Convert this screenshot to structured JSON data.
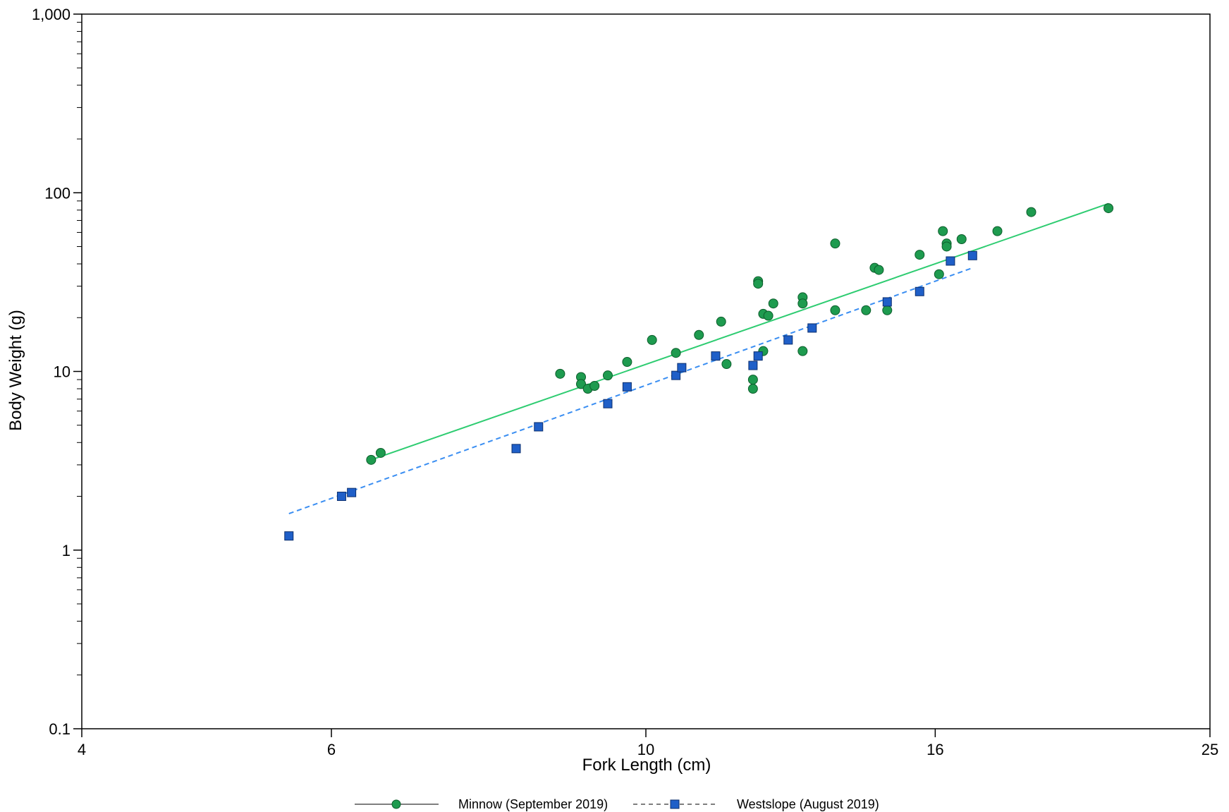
{
  "chart_data": {
    "type": "scatter",
    "title": "",
    "xlabel": "Fork Length (cm)",
    "ylabel": "Body Weight (g)",
    "x_scale": "log",
    "y_scale": "log",
    "xlim": [
      4,
      25
    ],
    "ylim": [
      0.1,
      1000
    ],
    "x_ticks": [
      4,
      6,
      10,
      16,
      25
    ],
    "x_tick_labels": [
      "4",
      "6",
      "10",
      "16",
      "25"
    ],
    "y_ticks": [
      0.1,
      1,
      10,
      100,
      1000
    ],
    "y_tick_labels": [
      "0.1",
      "1",
      "10",
      "100",
      "1,000"
    ],
    "grid": false,
    "legend_position": "bottom",
    "series": [
      {
        "name": "Minnow (September 2019)",
        "color": "#1e9b4f",
        "line_color": "#2ecc71",
        "marker": "circle",
        "line_style": "solid",
        "fit": {
          "x": [
            6.4,
            21.2
          ],
          "y": [
            3.2,
            87
          ]
        },
        "x": [
          6.4,
          6.5,
          8.7,
          9.0,
          9.0,
          9.1,
          9.2,
          9.4,
          9.7,
          10.1,
          10.5,
          10.9,
          11.3,
          11.4,
          11.9,
          11.9,
          12.0,
          12.0,
          12.1,
          12.1,
          12.2,
          12.3,
          12.9,
          12.9,
          12.9,
          13.6,
          13.6,
          14.3,
          14.5,
          14.6,
          14.8,
          15.6,
          16.1,
          16.2,
          16.3,
          16.3,
          16.7,
          17.7,
          18.7,
          21.2
        ],
        "y": [
          3.2,
          3.5,
          9.7,
          9.3,
          8.5,
          8.0,
          8.3,
          9.5,
          11.3,
          15.0,
          12.7,
          16.0,
          19.0,
          11.0,
          9.0,
          8.0,
          32.0,
          31.0,
          21.0,
          13.0,
          20.5,
          24.0,
          26.0,
          24.0,
          13.0,
          52.0,
          22.0,
          22.0,
          38.0,
          37.0,
          22.0,
          45.0,
          35.0,
          61.0,
          52.0,
          50.0,
          55.0,
          61.0,
          78.0,
          82.0
        ]
      },
      {
        "name": "Westslope (August 2019)",
        "color": "#1f5fc8",
        "line_color": "#3a8ef2",
        "marker": "square",
        "line_style": "dashed",
        "fit": {
          "x": [
            5.6,
            17.0
          ],
          "y": [
            1.6,
            38.0
          ]
        },
        "x": [
          5.6,
          6.1,
          6.2,
          8.1,
          8.4,
          9.4,
          9.7,
          10.5,
          10.6,
          11.2,
          11.9,
          12.0,
          12.6,
          13.1,
          14.8,
          15.6,
          16.4,
          17.0
        ],
        "y": [
          1.2,
          2.0,
          2.1,
          3.7,
          4.9,
          6.6,
          8.2,
          9.5,
          10.5,
          12.2,
          10.8,
          12.2,
          15.0,
          17.5,
          24.5,
          28.0,
          41.5,
          44.5
        ]
      }
    ]
  }
}
